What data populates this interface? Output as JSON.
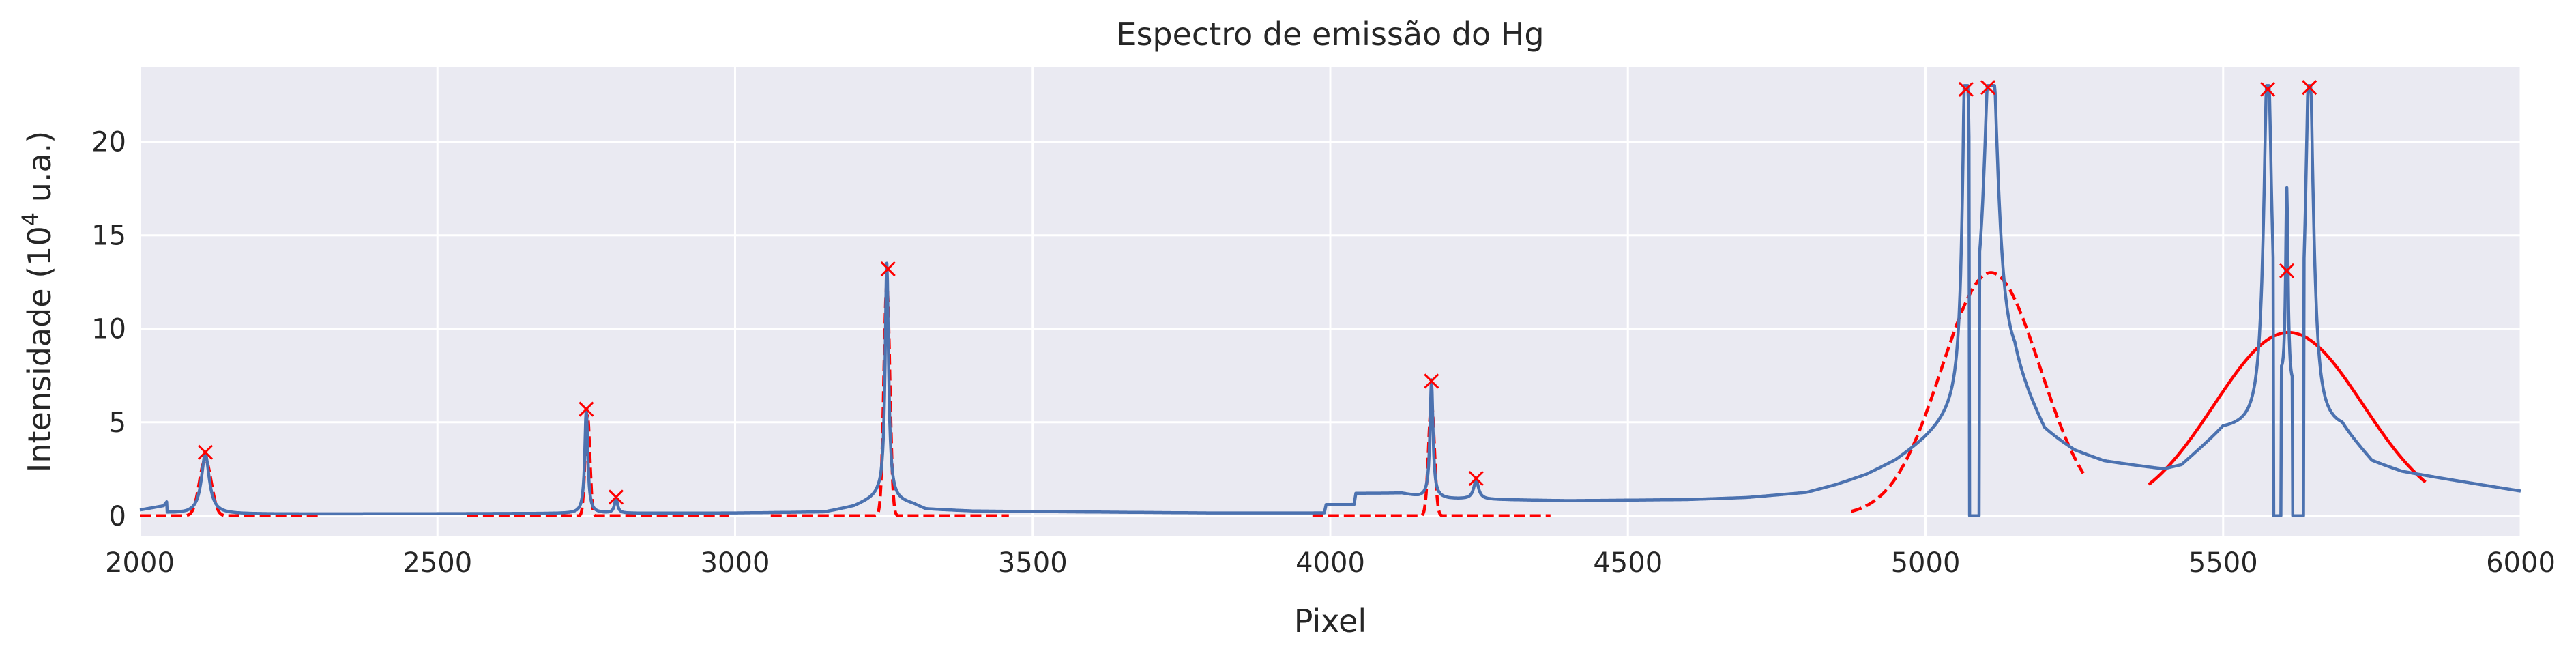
{
  "chart_data": {
    "type": "line",
    "title": "Espectro de emissão do Hg",
    "xlabel": "Pixel",
    "ylabel_prefix": "Intensidade (10",
    "ylabel_exp": "4",
    "ylabel_suffix": " u.a.)",
    "xlim": [
      2000,
      6000
    ],
    "ylim": [
      -1.1,
      24.0
    ],
    "grid": true,
    "x_ticks": [
      2000,
      2500,
      3000,
      3500,
      4000,
      4500,
      5000,
      5500,
      6000
    ],
    "x_tick_labels": [
      "2000",
      "2500",
      "3000",
      "3500",
      "4000",
      "4500",
      "5000",
      "5500",
      "6000"
    ],
    "y_ticks": [
      0,
      5,
      10,
      15,
      20
    ],
    "y_tick_labels": [
      "0",
      "5",
      "10",
      "15",
      "20"
    ],
    "colors": {
      "background": "#eaeaf2",
      "grid": "#ffffff",
      "spectrum": "#4c72b0",
      "fit": "#ff0000",
      "marker": "#ff0000"
    },
    "spectrum": {
      "baseline": [
        [
          2000,
          0.3
        ],
        [
          2040,
          0.5
        ],
        [
          2045,
          0.7
        ],
        [
          2046,
          0.15
        ],
        [
          2080,
          0.1
        ],
        [
          2300,
          0.1
        ],
        [
          2600,
          0.12
        ],
        [
          3000,
          0.15
        ],
        [
          3150,
          0.2
        ],
        [
          3200,
          0.5
        ],
        [
          3240,
          1.0
        ],
        [
          3300,
          0.6
        ],
        [
          3320,
          0.35
        ],
        [
          3400,
          0.25
        ],
        [
          3600,
          0.2
        ],
        [
          3800,
          0.15
        ],
        [
          3990,
          0.15
        ],
        [
          3993,
          0.6
        ],
        [
          4040,
          0.6
        ],
        [
          4043,
          1.2
        ],
        [
          4120,
          1.2
        ],
        [
          4150,
          1.0
        ],
        [
          4200,
          0.9
        ],
        [
          4400,
          0.8
        ],
        [
          4600,
          0.85
        ],
        [
          4700,
          0.95
        ],
        [
          4800,
          1.2
        ],
        [
          4850,
          1.6
        ],
        [
          4900,
          2.1
        ],
        [
          4950,
          2.8
        ],
        [
          5000,
          3.8
        ],
        [
          5150,
          7.0
        ],
        [
          5200,
          4.2
        ],
        [
          5250,
          3.3
        ],
        [
          5300,
          2.8
        ],
        [
          5400,
          2.4
        ],
        [
          5430,
          2.6
        ],
        [
          5500,
          4.5
        ],
        [
          5700,
          4.5
        ],
        [
          5750,
          2.8
        ],
        [
          5800,
          2.3
        ],
        [
          5900,
          1.8
        ],
        [
          6000,
          1.3
        ]
      ],
      "peaks": [
        {
          "center": 2110,
          "height": 3.2,
          "width": 8
        },
        {
          "center": 2750,
          "height": 5.6,
          "width": 3
        },
        {
          "center": 2800,
          "height": 0.8,
          "width": 3
        },
        {
          "center": 3255,
          "height": 12.6,
          "width": 3.5
        },
        {
          "center": 4170,
          "height": 6.3,
          "width": 3
        },
        {
          "center": 4245,
          "height": 1.0,
          "width": 5
        },
        {
          "center": 5068,
          "height": 21.0,
          "width": 6
        },
        {
          "center": 5110,
          "height": 20.0,
          "width": 14
        },
        {
          "center": 5575,
          "height": 20.0,
          "width": 8
        },
        {
          "center": 5607,
          "height": 11.0,
          "width": 2.5
        },
        {
          "center": 5645,
          "height": 20.0,
          "width": 8
        }
      ],
      "saturation": 23.0,
      "dips_to_zero": [
        [
          5074,
          5090
        ],
        [
          5585,
          5597
        ],
        [
          5617,
          5635
        ]
      ]
    },
    "fits": [
      {
        "style": "dashed",
        "x_range": [
          2000,
          2300
        ],
        "center": 2110,
        "amplitude": 3.0,
        "sigma": 10
      },
      {
        "style": "dashed",
        "x_range": [
          2550,
          2990
        ],
        "center": 2752,
        "amplitude": 5.4,
        "sigma": 4
      },
      {
        "style": "dashed",
        "x_range": [
          3060,
          3460
        ],
        "center": 3255,
        "amplitude": 12.4,
        "sigma": 5
      },
      {
        "style": "dashed",
        "x_range": [
          3970,
          4370
        ],
        "center": 4170,
        "amplitude": 6.0,
        "sigma": 5
      },
      {
        "style": "dashed",
        "x_range": [
          4875,
          5265
        ],
        "center": 5110,
        "amplitude": 13.0,
        "sigma": 83
      },
      {
        "style": "solid",
        "x_range": [
          5375,
          5840
        ],
        "center": 5610,
        "amplitude": 9.8,
        "sigma": 125
      }
    ],
    "peak_markers": [
      [
        2110,
        3.4
      ],
      [
        2750,
        5.7
      ],
      [
        2800,
        1.0
      ],
      [
        3257,
        13.2
      ],
      [
        4170,
        7.2
      ],
      [
        4245,
        2.0
      ],
      [
        5068,
        22.8
      ],
      [
        5105,
        22.9
      ],
      [
        5575,
        22.8
      ],
      [
        5607,
        13.1
      ],
      [
        5645,
        22.9
      ]
    ]
  }
}
